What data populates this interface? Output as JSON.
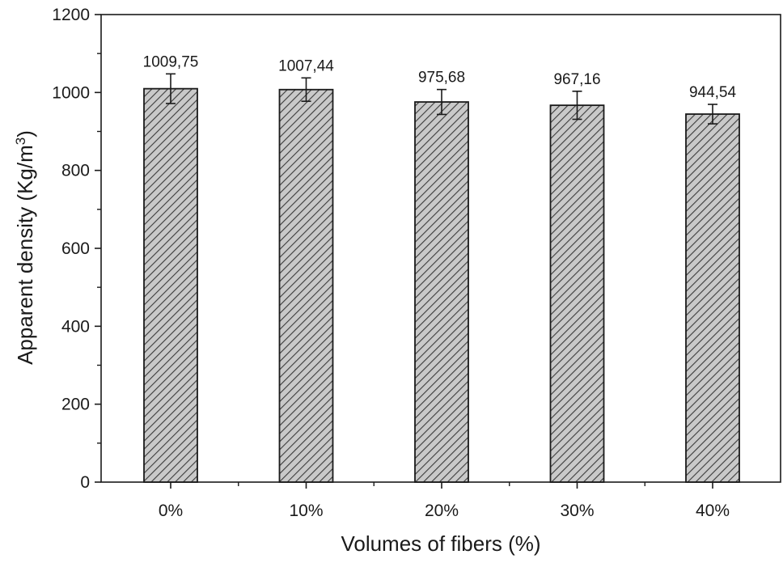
{
  "chart_data": {
    "type": "bar",
    "categories": [
      "0%",
      "10%",
      "20%",
      "30%",
      "40%"
    ],
    "values": [
      1009.75,
      1007.44,
      975.68,
      967.16,
      944.54
    ],
    "value_labels": [
      "1009,75",
      "1007,44",
      "975,68",
      "967,16",
      "944,54"
    ],
    "errors": [
      38,
      30,
      32,
      36,
      25
    ],
    "xlabel": "Volumes of fibers (%)",
    "ylabel_main": "Apparent density (Kg/m",
    "ylabel_sup": "3",
    "ylabel_close": ")",
    "ylim": [
      0,
      1200
    ],
    "yticks": [
      0,
      200,
      400,
      600,
      800,
      1000,
      1200
    ],
    "ytick_labels": [
      "0",
      "200",
      "400",
      "600",
      "800",
      "1000",
      "1200"
    ],
    "bar_pattern": "diagonal-hatch",
    "grid": false
  },
  "colors": {
    "axis": "#1a1a1a",
    "bar_fill": "#c9c9c9",
    "hatch": "#3a3a3a",
    "bar_stroke": "#1a1a1a"
  }
}
